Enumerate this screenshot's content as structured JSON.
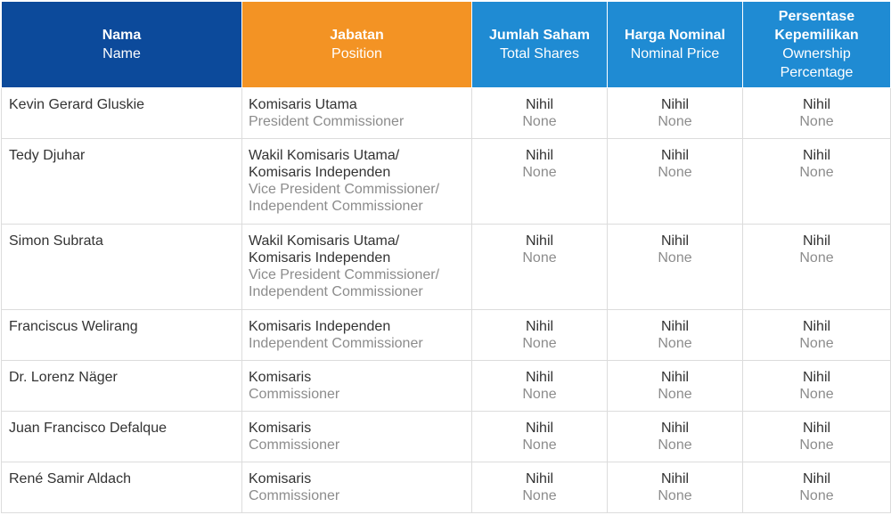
{
  "header": {
    "name": {
      "id": "Nama",
      "en": "Name"
    },
    "position": {
      "id": "Jabatan",
      "en": "Position"
    },
    "total_shares": {
      "id": "Jumlah Saham",
      "en": "Total Shares"
    },
    "nominal_price": {
      "id": "Harga Nominal",
      "en": "Nominal Price"
    },
    "ownership": {
      "id_line1": "Persentase",
      "id_line2": "Kepemilikan",
      "en_line1": "Ownership",
      "en_line2": "Percentage"
    }
  },
  "rows": [
    {
      "name": "Kevin Gerard Gluskie",
      "position_id": [
        "Komisaris Utama"
      ],
      "position_en": [
        "President Commissioner"
      ],
      "total_id": "Nihil",
      "total_en": "None",
      "nominal_id": "Nihil",
      "nominal_en": "None",
      "pct_id": "Nihil",
      "pct_en": "None"
    },
    {
      "name": "Tedy Djuhar",
      "position_id": [
        "Wakil Komisaris Utama/",
        "Komisaris Independen"
      ],
      "position_en": [
        "Vice President Commissioner/",
        "Independent Commissioner"
      ],
      "total_id": "Nihil",
      "total_en": "None",
      "nominal_id": "Nihil",
      "nominal_en": "None",
      "pct_id": "Nihil",
      "pct_en": "None"
    },
    {
      "name": "Simon Subrata",
      "position_id": [
        "Wakil Komisaris Utama/",
        "Komisaris Independen"
      ],
      "position_en": [
        "Vice President Commissioner/",
        "Independent Commissioner"
      ],
      "total_id": "Nihil",
      "total_en": "None",
      "nominal_id": "Nihil",
      "nominal_en": "None",
      "pct_id": "Nihil",
      "pct_en": "None"
    },
    {
      "name": "Franciscus Welirang",
      "position_id": [
        "Komisaris Independen"
      ],
      "position_en": [
        "Independent Commissioner"
      ],
      "total_id": "Nihil",
      "total_en": "None",
      "nominal_id": "Nihil",
      "nominal_en": "None",
      "pct_id": "Nihil",
      "pct_en": "None"
    },
    {
      "name": "Dr. Lorenz Näger",
      "position_id": [
        "Komisaris"
      ],
      "position_en": [
        "Commissioner"
      ],
      "total_id": "Nihil",
      "total_en": "None",
      "nominal_id": "Nihil",
      "nominal_en": "None",
      "pct_id": "Nihil",
      "pct_en": "None"
    },
    {
      "name": "Juan Francisco Defalque",
      "position_id": [
        "Komisaris"
      ],
      "position_en": [
        "Commissioner"
      ],
      "total_id": "Nihil",
      "total_en": "None",
      "nominal_id": "Nihil",
      "nominal_en": "None",
      "pct_id": "Nihil",
      "pct_en": "None"
    },
    {
      "name": "René Samir Aldach",
      "position_id": [
        "Komisaris"
      ],
      "position_en": [
        "Commissioner"
      ],
      "total_id": "Nihil",
      "total_en": "None",
      "nominal_id": "Nihil",
      "nominal_en": "None",
      "pct_id": "Nihil",
      "pct_en": "None"
    }
  ],
  "colors": {
    "header_name_bg": "#0c4a9b",
    "header_position_bg": "#f39324",
    "header_other_bg": "#1f8bd3",
    "primary_text": "#333333",
    "secondary_text": "#8c8c8c",
    "grid_line": "#dcdcdc"
  }
}
